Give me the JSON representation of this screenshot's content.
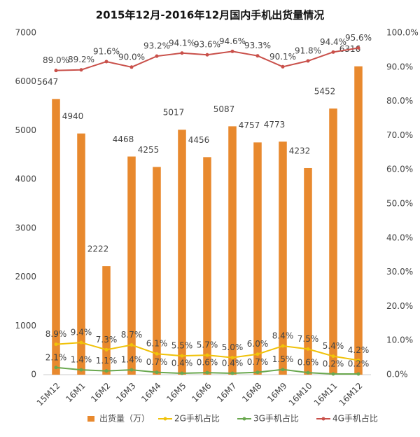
{
  "chart_data": {
    "type": "bar_line",
    "title": "2015年12月-2016年12月国内手机出货量情况",
    "categories": [
      "15M12",
      "16M1",
      "16M2",
      "16M3",
      "16M4",
      "16M5",
      "16M6",
      "16M7",
      "16M8",
      "16M9",
      "16M10",
      "16M11",
      "16M12"
    ],
    "series": [
      {
        "name": "出货量（万）",
        "type": "bar",
        "color": "#e8892e",
        "values": [
          5647,
          4940,
          2222,
          4468,
          4255,
          5017,
          4456,
          5087,
          4757,
          4773,
          4232,
          5452,
          6316
        ]
      },
      {
        "name": "2G手机占比",
        "type": "line",
        "axis": "y2",
        "color": "#f0c20a",
        "values": [
          8.9,
          9.4,
          7.3,
          8.7,
          6.1,
          5.5,
          5.7,
          5.0,
          6.0,
          8.4,
          7.5,
          5.4,
          4.2
        ],
        "value_labels": [
          "8.9%",
          "9.4%",
          "7.3%",
          "8.7%",
          "6.1%",
          "5.5%",
          "5.7%",
          "5.0%",
          "6.0%",
          "8.4%",
          "7.5%",
          "5.4%",
          "4.2%"
        ]
      },
      {
        "name": "3G手机占比",
        "type": "line",
        "axis": "y2",
        "color": "#6aa84f",
        "values": [
          2.1,
          1.4,
          1.1,
          1.4,
          0.7,
          0.4,
          0.6,
          0.4,
          0.7,
          1.5,
          0.6,
          0.2,
          0.2
        ],
        "value_labels": [
          "2.1%",
          "1.4%",
          "1.1%",
          "1.4%",
          "0.7%",
          "0.4%",
          "0.6%",
          "0.4%",
          "0.7%",
          "1.5%",
          "0.6%",
          "0.2%",
          "0.2%"
        ]
      },
      {
        "name": "4G手机占比",
        "type": "line",
        "axis": "y2",
        "color": "#c9504a",
        "values": [
          89.0,
          89.2,
          91.6,
          90.0,
          93.2,
          94.1,
          93.6,
          94.6,
          93.3,
          90.1,
          91.8,
          94.4,
          95.6
        ],
        "value_labels": [
          "89.0%",
          "89.2%",
          "91.6%",
          "90.0%",
          "93.2%",
          "94.1%",
          "93.6%",
          "94.6%",
          "93.3%",
          "90.1%",
          "91.8%",
          "94.4%",
          "95.6%"
        ]
      }
    ],
    "ylim": [
      0,
      7000
    ],
    "yticks": [
      0,
      1000,
      2000,
      3000,
      4000,
      5000,
      6000,
      7000
    ],
    "y2lim": [
      0,
      100
    ],
    "y2ticks": [
      {
        "value": 0,
        "label": "0.0%"
      },
      {
        "value": 10,
        "label": "10.0%"
      },
      {
        "value": 20,
        "label": "20.0%"
      },
      {
        "value": 30,
        "label": "30.0%"
      },
      {
        "value": 40,
        "label": "40.0%"
      },
      {
        "value": 50,
        "label": "50.0%"
      },
      {
        "value": 60,
        "label": "60.0%"
      },
      {
        "value": 70,
        "label": "70.0%"
      },
      {
        "value": 80,
        "label": "80.0%"
      },
      {
        "value": 90,
        "label": "90.0%"
      },
      {
        "value": 100,
        "label": "100.0%"
      }
    ],
    "legend": "bottom"
  }
}
